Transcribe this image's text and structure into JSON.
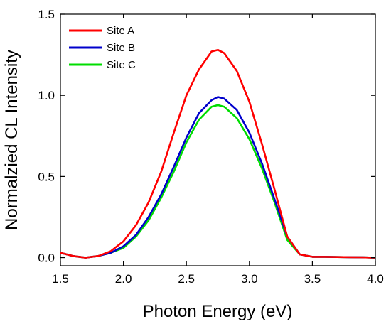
{
  "chart_data": {
    "type": "line",
    "title": "",
    "xlabel": "Photon Energy (eV)",
    "ylabel": "Normalzied CL Intensity",
    "xlim": [
      1.5,
      4.0
    ],
    "ylim": [
      -0.05,
      1.5
    ],
    "xticks": [
      "1.5",
      "2.0",
      "2.5",
      "3.0",
      "3.5",
      "4.0"
    ],
    "yticks": [
      "0.0",
      "0.5",
      "1.0",
      "1.5"
    ],
    "grid": false,
    "legend_position": "top-left",
    "x": [
      1.5,
      1.6,
      1.7,
      1.8,
      1.9,
      2.0,
      2.1,
      2.2,
      2.3,
      2.4,
      2.5,
      2.6,
      2.7,
      2.75,
      2.8,
      2.9,
      3.0,
      3.1,
      3.2,
      3.3,
      3.4,
      3.5,
      3.6,
      3.7,
      3.8,
      3.9,
      4.0
    ],
    "series": [
      {
        "name": "Site A",
        "color": "#ff0000",
        "values": [
          0.03,
          0.01,
          0.0,
          0.01,
          0.04,
          0.1,
          0.2,
          0.34,
          0.53,
          0.77,
          1.0,
          1.16,
          1.27,
          1.28,
          1.26,
          1.15,
          0.96,
          0.7,
          0.42,
          0.13,
          0.02,
          0.005,
          0.005,
          0.004,
          0.003,
          0.002,
          0.0
        ]
      },
      {
        "name": "Site B",
        "color": "#0000cc",
        "values": [
          0.03,
          0.01,
          0.0,
          0.01,
          0.03,
          0.07,
          0.14,
          0.25,
          0.39,
          0.56,
          0.74,
          0.89,
          0.97,
          0.99,
          0.98,
          0.91,
          0.77,
          0.58,
          0.36,
          0.13,
          0.02,
          0.005,
          0.005,
          0.004,
          0.003,
          0.002,
          0.0
        ]
      },
      {
        "name": "Site C",
        "color": "#00dd00",
        "values": [
          0.03,
          0.01,
          0.0,
          0.01,
          0.03,
          0.06,
          0.13,
          0.23,
          0.37,
          0.53,
          0.71,
          0.85,
          0.93,
          0.94,
          0.93,
          0.86,
          0.73,
          0.55,
          0.34,
          0.11,
          0.02,
          0.005,
          0.005,
          0.004,
          0.003,
          0.002,
          0.0
        ]
      }
    ]
  }
}
